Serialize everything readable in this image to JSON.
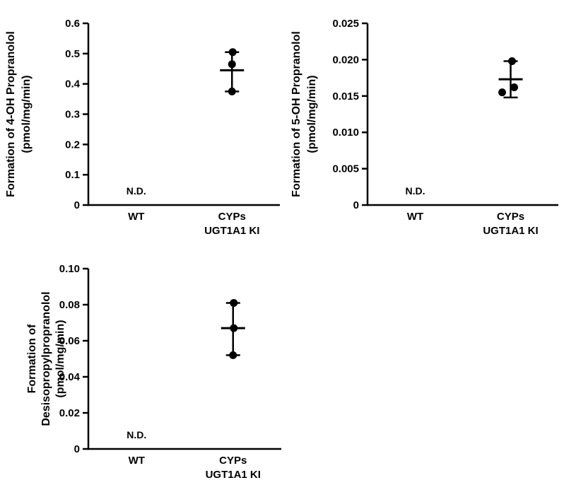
{
  "figure": {
    "background": "#ffffff",
    "ink_color": "#000000"
  },
  "chart_data": [
    {
      "type": "scatter",
      "title": "",
      "xlabel": "",
      "ylabel": "Formation of 4-OH Propranolol (pmol/mg/min)",
      "ylabel_lines": [
        "Formation of 4-OH Propranolol",
        "(pmol/mg/min)"
      ],
      "ylim": [
        0,
        0.6
      ],
      "grid": false,
      "legend": false,
      "yticks": [
        {
          "value": 0,
          "label": "0"
        },
        {
          "value": 0.1,
          "label": "0.1"
        },
        {
          "value": 0.2,
          "label": "0.2"
        },
        {
          "value": 0.3,
          "label": "0.3"
        },
        {
          "value": 0.4,
          "label": "0.4"
        },
        {
          "value": 0.5,
          "label": "0.5"
        },
        {
          "value": 0.6,
          "label": "0.6"
        }
      ],
      "categories": [
        {
          "name": "WT",
          "label_lines": [
            "WT"
          ],
          "value_label": "N.D.",
          "points": []
        },
        {
          "name": "CYPs UGT1A1 KI",
          "label_lines": [
            "CYPs",
            "UGT1A1 KI"
          ],
          "points": [
            {
              "y": 0.505,
              "dx": 1
            },
            {
              "y": 0.465,
              "dx": 0
            },
            {
              "y": 0.375,
              "dx": 0
            }
          ],
          "mean": 0.445,
          "error_low": 0.375,
          "error_high": 0.505
        }
      ]
    },
    {
      "type": "scatter",
      "title": "",
      "xlabel": "",
      "ylabel": "Formation of 5-OH Propranolol (pmol/mg/min)",
      "ylabel_lines": [
        "Formation of 5-OH Propranolol",
        "(pmol/mg/min)"
      ],
      "ylim": [
        0,
        0.025
      ],
      "grid": false,
      "legend": false,
      "yticks": [
        {
          "value": 0,
          "label": "0"
        },
        {
          "value": 0.005,
          "label": "0.005"
        },
        {
          "value": 0.01,
          "label": "0.010"
        },
        {
          "value": 0.015,
          "label": "0.015"
        },
        {
          "value": 0.02,
          "label": "0.020"
        },
        {
          "value": 0.025,
          "label": "0.025"
        }
      ],
      "categories": [
        {
          "name": "WT",
          "label_lines": [
            "WT"
          ],
          "value_label": "N.D.",
          "points": []
        },
        {
          "name": "CYPs UGT1A1 KI",
          "label_lines": [
            "CYPs",
            "UGT1A1 KI"
          ],
          "points": [
            {
              "y": 0.0198,
              "dx": 2
            },
            {
              "y": 0.0155,
              "dx": -12
            },
            {
              "y": 0.0162,
              "dx": 5
            }
          ],
          "mean": 0.0173,
          "error_low": 0.0148,
          "error_high": 0.0198
        }
      ]
    },
    {
      "type": "scatter",
      "title": "",
      "xlabel": "",
      "ylabel": "Formation of Desisopropylpropranolol (pmol/mg/min)",
      "ylabel_lines": [
        "Formation of",
        "Desisopropylpropranolol",
        "(pmol/mg/min)"
      ],
      "ylim": [
        0,
        0.1
      ],
      "grid": false,
      "legend": false,
      "yticks": [
        {
          "value": 0,
          "label": "0"
        },
        {
          "value": 0.02,
          "label": "0.02"
        },
        {
          "value": 0.04,
          "label": "0.04"
        },
        {
          "value": 0.06,
          "label": "0.06"
        },
        {
          "value": 0.08,
          "label": "0.08"
        },
        {
          "value": 0.1,
          "label": "0.10"
        }
      ],
      "categories": [
        {
          "name": "WT",
          "label_lines": [
            "WT"
          ],
          "value_label": "N.D.",
          "points": []
        },
        {
          "name": "CYPs UGT1A1 KI",
          "label_lines": [
            "CYPs",
            "UGT1A1 KI"
          ],
          "points": [
            {
              "y": 0.081,
              "dx": 1
            },
            {
              "y": 0.067,
              "dx": 1
            },
            {
              "y": 0.052,
              "dx": 0
            }
          ],
          "mean": 0.067,
          "error_low": 0.052,
          "error_high": 0.081
        }
      ]
    }
  ]
}
